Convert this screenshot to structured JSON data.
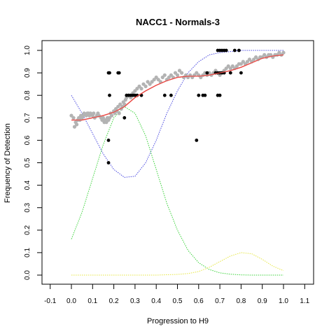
{
  "chart_data": {
    "type": "scatter",
    "title": "NACC1 - Normals-3",
    "xlabel": "Progression to H9",
    "ylabel": "Frequency of Detection",
    "xlim": [
      -0.1,
      1.1
    ],
    "ylim": [
      0.0,
      1.0
    ],
    "x_ticks": [
      "-0.1",
      "0.0",
      "0.1",
      "0.2",
      "0.3",
      "0.4",
      "0.5",
      "0.6",
      "0.7",
      "0.8",
      "0.9",
      "1.0",
      "1.1"
    ],
    "y_ticks": [
      "0.0",
      "0.1",
      "0.2",
      "0.3",
      "0.4",
      "0.5",
      "0.6",
      "0.7",
      "0.8",
      "0.9",
      "1.0"
    ],
    "grid": false,
    "colors": {
      "grey_points": "#b3b3b3",
      "black_points": "#000000",
      "fit": "#e8504b",
      "blue": "#4a4ae0",
      "green": "#3ad33a",
      "yellow": "#e6e640"
    },
    "series": [
      {
        "color": "grey",
        "type": "scatter",
        "x": [
          0.0,
          0.01,
          0.015,
          0.02,
          0.025,
          0.03,
          0.035,
          0.04,
          0.045,
          0.05,
          0.055,
          0.06,
          0.07,
          0.075,
          0.08,
          0.085,
          0.09,
          0.1,
          0.105,
          0.11,
          0.12,
          0.125,
          0.13,
          0.14,
          0.145,
          0.15,
          0.155,
          0.16,
          0.165,
          0.17,
          0.175,
          0.18,
          0.185,
          0.19,
          0.2,
          0.205,
          0.21,
          0.215,
          0.22,
          0.225,
          0.23,
          0.235,
          0.24,
          0.245,
          0.25,
          0.255,
          0.26,
          0.27,
          0.28,
          0.29,
          0.3,
          0.31,
          0.32,
          0.33,
          0.34,
          0.35,
          0.36,
          0.37,
          0.38,
          0.39,
          0.4,
          0.41,
          0.42,
          0.43,
          0.44,
          0.45,
          0.46,
          0.47,
          0.48,
          0.49,
          0.5,
          0.51,
          0.52,
          0.53,
          0.54,
          0.55,
          0.56,
          0.57,
          0.58,
          0.59,
          0.6,
          0.61,
          0.62,
          0.63,
          0.64,
          0.65,
          0.66,
          0.67,
          0.68,
          0.69,
          0.7,
          0.71,
          0.72,
          0.73,
          0.74,
          0.75,
          0.76,
          0.77,
          0.78,
          0.79,
          0.8,
          0.81,
          0.82,
          0.83,
          0.84,
          0.85,
          0.86,
          0.87,
          0.88,
          0.89,
          0.9,
          0.91,
          0.92,
          0.93,
          0.94,
          0.95,
          0.96,
          0.97,
          0.98,
          0.99,
          1.0
        ],
        "y": [
          0.71,
          0.7,
          0.66,
          0.68,
          0.67,
          0.69,
          0.7,
          0.69,
          0.71,
          0.7,
          0.71,
          0.72,
          0.71,
          0.72,
          0.72,
          0.71,
          0.72,
          0.71,
          0.72,
          0.7,
          0.71,
          0.72,
          0.71,
          0.7,
          0.69,
          0.7,
          0.68,
          0.69,
          0.68,
          0.7,
          0.69,
          0.7,
          0.72,
          0.71,
          0.73,
          0.72,
          0.74,
          0.73,
          0.75,
          0.72,
          0.76,
          0.74,
          0.75,
          0.77,
          0.76,
          0.78,
          0.79,
          0.8,
          0.79,
          0.81,
          0.82,
          0.83,
          0.84,
          0.83,
          0.85,
          0.84,
          0.86,
          0.85,
          0.86,
          0.87,
          0.88,
          0.87,
          0.86,
          0.88,
          0.89,
          0.87,
          0.88,
          0.89,
          0.88,
          0.9,
          0.89,
          0.91,
          0.9,
          0.88,
          0.89,
          0.88,
          0.89,
          0.88,
          0.89,
          0.9,
          0.89,
          0.88,
          0.89,
          0.9,
          0.89,
          0.9,
          0.89,
          0.9,
          0.91,
          0.9,
          0.89,
          0.9,
          0.91,
          0.92,
          0.93,
          0.92,
          0.93,
          0.92,
          0.93,
          0.94,
          0.94,
          0.95,
          0.94,
          0.95,
          0.96,
          0.95,
          0.96,
          0.97,
          0.96,
          0.97,
          0.97,
          0.98,
          0.97,
          0.98,
          0.98,
          0.97,
          0.98,
          0.98,
          0.99,
          0.98,
          0.99
        ]
      },
      {
        "color": "black",
        "type": "scatter",
        "x": [
          0.175,
          0.175,
          0.18,
          0.18,
          0.175,
          0.22,
          0.225,
          0.25,
          0.26,
          0.27,
          0.28,
          0.29,
          0.3,
          0.31,
          0.33,
          0.44,
          0.47,
          0.59,
          0.6,
          0.62,
          0.63,
          0.64,
          0.68,
          0.69,
          0.69,
          0.69,
          0.7,
          0.7,
          0.7,
          0.71,
          0.71,
          0.72,
          0.72,
          0.73,
          0.75,
          0.77,
          0.79,
          0.8
        ],
        "y": [
          0.5,
          0.6,
          0.8,
          0.9,
          0.9,
          0.9,
          0.9,
          0.7,
          0.8,
          0.8,
          0.8,
          0.8,
          0.8,
          0.8,
          0.8,
          0.8,
          0.8,
          0.6,
          0.8,
          0.8,
          0.8,
          0.9,
          0.9,
          0.8,
          0.9,
          1.0,
          0.8,
          0.9,
          1.0,
          0.9,
          1.0,
          0.9,
          1.0,
          1.0,
          0.9,
          1.0,
          1.0,
          0.9
        ]
      },
      {
        "color": "red",
        "type": "line",
        "x": [
          0.0,
          0.05,
          0.1,
          0.15,
          0.2,
          0.25,
          0.3,
          0.35,
          0.4,
          0.45,
          0.5,
          0.55,
          0.6,
          0.65,
          0.7,
          0.75,
          0.8,
          0.85,
          0.9,
          0.95,
          1.0
        ],
        "y": [
          0.69,
          0.69,
          0.7,
          0.71,
          0.725,
          0.75,
          0.79,
          0.82,
          0.845,
          0.865,
          0.88,
          0.885,
          0.885,
          0.89,
          0.9,
          0.91,
          0.925,
          0.945,
          0.965,
          0.975,
          0.98
        ]
      },
      {
        "color": "blue",
        "type": "line",
        "x": [
          0.0,
          0.05,
          0.1,
          0.15,
          0.2,
          0.25,
          0.3,
          0.35,
          0.4,
          0.45,
          0.5,
          0.55,
          0.6,
          0.65,
          0.7,
          0.75,
          0.8,
          0.85,
          0.9,
          0.95,
          1.0
        ],
        "y": [
          0.8,
          0.72,
          0.63,
          0.54,
          0.47,
          0.435,
          0.44,
          0.5,
          0.6,
          0.72,
          0.82,
          0.9,
          0.95,
          0.98,
          0.99,
          0.995,
          1.0,
          1.0,
          1.0,
          1.0,
          1.0
        ]
      },
      {
        "color": "green",
        "type": "line",
        "x": [
          0.0,
          0.05,
          0.1,
          0.15,
          0.2,
          0.25,
          0.3,
          0.35,
          0.4,
          0.45,
          0.5,
          0.55,
          0.6,
          0.65,
          0.7,
          0.75,
          0.8,
          0.85,
          0.9,
          0.95,
          1.0
        ],
        "y": [
          0.16,
          0.28,
          0.43,
          0.58,
          0.7,
          0.75,
          0.72,
          0.62,
          0.47,
          0.32,
          0.2,
          0.11,
          0.055,
          0.025,
          0.01,
          0.004,
          0.001,
          0.0,
          0.0,
          0.0,
          0.0
        ]
      },
      {
        "color": "yellow",
        "type": "line",
        "x": [
          0.0,
          0.1,
          0.2,
          0.3,
          0.4,
          0.5,
          0.55,
          0.6,
          0.65,
          0.7,
          0.75,
          0.8,
          0.85,
          0.9,
          0.95,
          1.0
        ],
        "y": [
          0.0,
          0.0,
          0.0,
          0.0,
          0.0,
          0.003,
          0.007,
          0.016,
          0.035,
          0.06,
          0.085,
          0.1,
          0.095,
          0.07,
          0.04,
          0.02
        ]
      }
    ]
  }
}
